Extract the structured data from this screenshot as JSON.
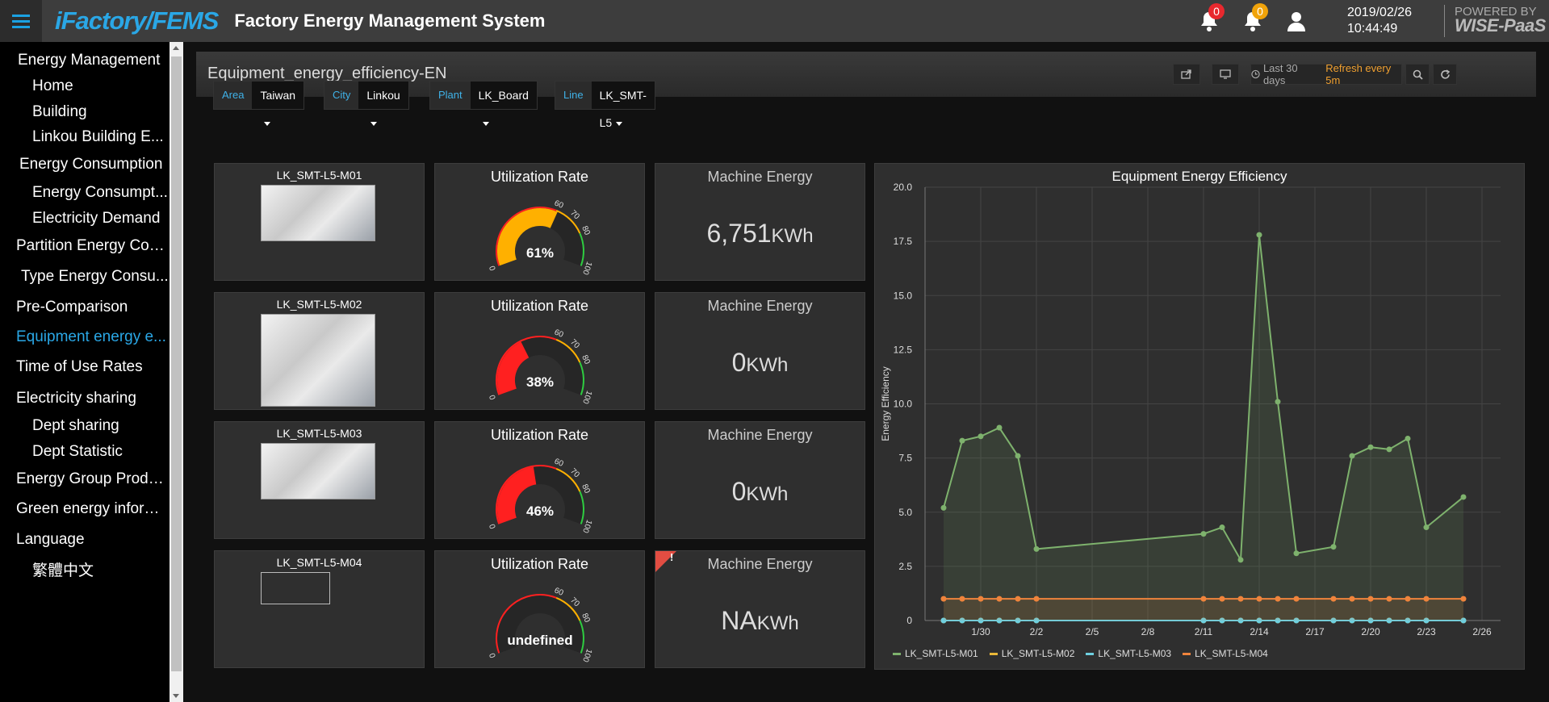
{
  "header": {
    "logo": "iFactory/FEMS",
    "title": "Factory Energy Management System",
    "alert_count_1": "0",
    "alert_count_2": "0",
    "date": "2019/02/26",
    "time": "10:44:49",
    "powered_by": "POWERED BY",
    "powered_brand": "WISE-PaaS"
  },
  "sidebar": {
    "items": [
      {
        "label": "Energy Management",
        "sub": false
      },
      {
        "label": "Home",
        "sub": true
      },
      {
        "label": "Building",
        "sub": true
      },
      {
        "label": "Linkou Building E...",
        "sub": true
      },
      {
        "label": "Energy Consumption",
        "sub": false
      },
      {
        "label": "Energy Consumpt...",
        "sub": true
      },
      {
        "label": "Electricity Demand",
        "sub": true
      },
      {
        "label": "Partition Energy Con...",
        "sub": false
      },
      {
        "label": "Type Energy Consu...",
        "sub": false
      },
      {
        "label": "Pre-Comparison",
        "sub": false
      },
      {
        "label": "Equipment energy e...",
        "sub": false,
        "active": true
      },
      {
        "label": "Time of Use Rates",
        "sub": false
      },
      {
        "label": "Electricity sharing",
        "sub": false
      },
      {
        "label": "Dept sharing",
        "sub": true
      },
      {
        "label": "Dept Statistic",
        "sub": true
      },
      {
        "label": "Energy Group Produ...",
        "sub": false
      },
      {
        "label": "Green energy inform...",
        "sub": false
      },
      {
        "label": "Language",
        "sub": false
      },
      {
        "label": "繁體中文",
        "sub": true
      }
    ]
  },
  "dashboard": {
    "title": "Equipment_energy_efficiency-EN",
    "time_range": "Last 30 days",
    "refresh": "Refresh every 5m"
  },
  "filters": [
    {
      "label": "Area",
      "value": "Taiwan"
    },
    {
      "label": "City",
      "value": "Linkou"
    },
    {
      "label": "Plant",
      "value": "LK_Board"
    },
    {
      "label": "Line",
      "value": "LK_SMT-L5"
    }
  ],
  "machines": [
    {
      "name": "LK_SMT-L5-M01",
      "util_title": "Utilization Rate",
      "util_text": "61%",
      "util_value": 61,
      "energy_title": "Machine Energy",
      "energy_value": "6,751",
      "energy_unit": "KWh"
    },
    {
      "name": "LK_SMT-L5-M02",
      "util_title": "Utilization Rate",
      "util_text": "38%",
      "util_value": 38,
      "energy_title": "Machine Energy",
      "energy_value": "0",
      "energy_unit": "KWh"
    },
    {
      "name": "LK_SMT-L5-M03",
      "util_title": "Utilization Rate",
      "util_text": "46%",
      "util_value": 46,
      "energy_title": "Machine Energy",
      "energy_value": "0",
      "energy_unit": "KWh"
    },
    {
      "name": "LK_SMT-L5-M04",
      "util_title": "Utilization Rate",
      "util_text": "undefined",
      "util_value": 0,
      "energy_title": "Machine Energy",
      "energy_value": "NA",
      "energy_unit": "KWh",
      "warning": "!"
    }
  ],
  "gauge": {
    "min_label": "0",
    "thresholds": [
      "60",
      "70",
      "80"
    ],
    "max_label": "100"
  },
  "colors": {
    "accent": "#2aa7e6",
    "gauge_low": "#ff2020",
    "gauge_mid": "#ffb000",
    "gauge_high": "#2ecc40",
    "series_m01": "#7eb26d",
    "series_m02": "#eab839",
    "series_m03": "#6ed0e0",
    "series_m04": "#ef843c"
  },
  "chart_data": {
    "type": "line",
    "title": "Equipment Energy Efficiency",
    "ylabel": "Energy Efficiency",
    "xlabel": "",
    "ylim": [
      0,
      20
    ],
    "yticks": [
      "0",
      "2.5",
      "5.0",
      "7.5",
      "10.0",
      "12.5",
      "15.0",
      "17.5",
      "20.0"
    ],
    "xlim": [
      "2019-01-27",
      "2019-02-27"
    ],
    "xticks": [
      "1/30",
      "2/2",
      "2/5",
      "2/8",
      "2/11",
      "2/14",
      "2/17",
      "2/20",
      "2/23",
      "2/26"
    ],
    "xtick_dates": [
      "2019-01-30",
      "2019-02-02",
      "2019-02-05",
      "2019-02-08",
      "2019-02-11",
      "2019-02-14",
      "2019-02-17",
      "2019-02-20",
      "2019-02-23",
      "2019-02-26"
    ],
    "grid": true,
    "legend": "bottom-left",
    "series": [
      {
        "name": "LK_SMT-L5-M01",
        "x": [
          "2019-01-28",
          "2019-01-29",
          "2019-01-30",
          "2019-01-31",
          "2019-02-01",
          "2019-02-02",
          "2019-02-11",
          "2019-02-12",
          "2019-02-13",
          "2019-02-14",
          "2019-02-15",
          "2019-02-16",
          "2019-02-18",
          "2019-02-19",
          "2019-02-20",
          "2019-02-21",
          "2019-02-22",
          "2019-02-23",
          "2019-02-25"
        ],
        "values": [
          5.2,
          8.3,
          8.5,
          8.9,
          7.6,
          3.3,
          4.0,
          4.3,
          2.8,
          17.8,
          10.1,
          3.1,
          3.4,
          7.6,
          8.0,
          7.9,
          8.4,
          4.3,
          5.7
        ]
      },
      {
        "name": "LK_SMT-L5-M02",
        "x": [
          "2019-01-28",
          "2019-01-29",
          "2019-01-30",
          "2019-01-31",
          "2019-02-01",
          "2019-02-02",
          "2019-02-11",
          "2019-02-12",
          "2019-02-13",
          "2019-02-14",
          "2019-02-15",
          "2019-02-16",
          "2019-02-18",
          "2019-02-19",
          "2019-02-20",
          "2019-02-21",
          "2019-02-22",
          "2019-02-23",
          "2019-02-25"
        ],
        "values": [
          0,
          0,
          0,
          0,
          0,
          0,
          0,
          0,
          0,
          0,
          0,
          0,
          0,
          0,
          0,
          0,
          0,
          0,
          0
        ]
      },
      {
        "name": "LK_SMT-L5-M03",
        "x": [
          "2019-01-28",
          "2019-01-29",
          "2019-01-30",
          "2019-01-31",
          "2019-02-01",
          "2019-02-02",
          "2019-02-11",
          "2019-02-12",
          "2019-02-13",
          "2019-02-14",
          "2019-02-15",
          "2019-02-16",
          "2019-02-18",
          "2019-02-19",
          "2019-02-20",
          "2019-02-21",
          "2019-02-22",
          "2019-02-23",
          "2019-02-25"
        ],
        "values": [
          0,
          0,
          0,
          0,
          0,
          0,
          0,
          0,
          0,
          0,
          0,
          0,
          0,
          0,
          0,
          0,
          0,
          0,
          0
        ]
      },
      {
        "name": "LK_SMT-L5-M04",
        "x": [
          "2019-01-28",
          "2019-01-29",
          "2019-01-30",
          "2019-01-31",
          "2019-02-01",
          "2019-02-02",
          "2019-02-11",
          "2019-02-12",
          "2019-02-13",
          "2019-02-14",
          "2019-02-15",
          "2019-02-16",
          "2019-02-18",
          "2019-02-19",
          "2019-02-20",
          "2019-02-21",
          "2019-02-22",
          "2019-02-23",
          "2019-02-25"
        ],
        "values": [
          1,
          1,
          1,
          1,
          1,
          1,
          1,
          1,
          1,
          1,
          1,
          1,
          1,
          1,
          1,
          1,
          1,
          1,
          1
        ]
      }
    ]
  }
}
